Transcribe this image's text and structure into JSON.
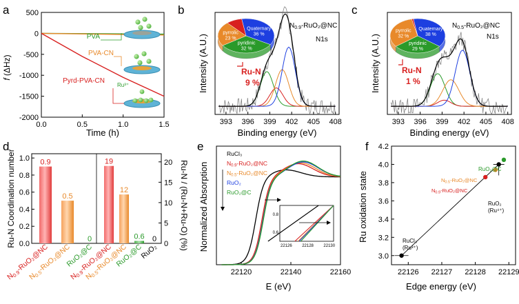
{
  "panels": {
    "a": {
      "letter": "a",
      "ylabel_f": "f",
      "ylabel_rest": " (ΔHz)",
      "xlabel": "Time (h)",
      "xticks": [
        "0.0",
        "0.5",
        "1.0",
        "1.5"
      ],
      "yticks": [
        "500",
        "0",
        "-500",
        "-1000",
        "-1500",
        "-2000"
      ],
      "labels": {
        "pva": "PVA",
        "pvacn": "PVA-CN",
        "pyrd": "Pyrd-PVA-CN",
        "ru": "Ru³⁺"
      }
    },
    "b": {
      "letter": "b",
      "ylabel": "Intensity (A.U.)",
      "xlabel": "Binding energy (eV)",
      "xticks": [
        "393",
        "396",
        "399",
        "402",
        "405",
        "408"
      ],
      "sample_main": "N",
      "sample_sub": "0.9",
      "sample_rest": "-RuO₂@NC",
      "n1s": "N1s",
      "pie": [
        {
          "name": "Quaternary",
          "pct": "36 %",
          "color": "#1d3fe0"
        },
        {
          "name": "pyridinic",
          "pct": "32 %",
          "color": "#2a9a2a"
        },
        {
          "name": "pyrrolic",
          "pct": "23 %",
          "color": "#e8892a"
        },
        {
          "name": "",
          "pct": "",
          "color": "#d8201f"
        }
      ],
      "run_label": "Ru-N",
      "run_pct": "9 %"
    },
    "c": {
      "letter": "c",
      "ylabel": "Intensity (A.U.)",
      "xlabel": "Binding energy (eV)",
      "xticks": [
        "393",
        "396",
        "399",
        "402",
        "405",
        "408"
      ],
      "sample_main": "N",
      "sample_sub": "0.5",
      "sample_rest": "-RuO₂@NC",
      "n1s": "N1s",
      "pie": [
        {
          "name": "Quaternary",
          "pct": "38 %",
          "color": "#1d3fe0"
        },
        {
          "name": "pyridinic",
          "pct": "29 %",
          "color": "#2a9a2a"
        },
        {
          "name": "pyrrolic",
          "pct": "32 %",
          "color": "#e8892a"
        },
        {
          "name": "",
          "pct": "",
          "color": "#d8201f"
        }
      ],
      "run_label": "Ru-N",
      "run_pct": "1 %"
    },
    "d": {
      "letter": "d",
      "ylabel_left": "Ru-N Coordination number",
      "ylabel_right": "Ru-N / (Ru-N+Ru-O) (%)",
      "left_ticks": [
        "0.0",
        "0.2",
        "0.4",
        "0.6",
        "0.8",
        "1.0"
      ],
      "right_ticks": [
        "0",
        "5",
        "10",
        "15",
        "20"
      ],
      "categories": [
        "N0.9-RuO2@NC",
        "N0.5-RuO2@NC",
        "RuO2@C",
        "N0.9-RuO2@NC",
        "N0.5-RuO2@NC",
        "RuO2@C",
        "RuO2"
      ],
      "bars_cn": [
        0.9,
        0.5,
        0
      ],
      "bars_cn_labels": [
        "0.9",
        "0.5",
        "0"
      ],
      "bars_pct": [
        19,
        12,
        0.6,
        0
      ],
      "bars_pct_labels": [
        "19",
        "12",
        "0.6",
        "0"
      ],
      "cat_labels": [
        {
          "main": "N",
          "sub": "0.9",
          "rest": "-RuO₂@NC",
          "color": "#d8201f"
        },
        {
          "main": "N",
          "sub": "0.5",
          "rest": "-RuO₂@NC",
          "color": "#e8892a"
        },
        {
          "main": "RuO₂@C",
          "sub": "",
          "rest": "",
          "color": "#2a9a2a"
        },
        {
          "main": "N",
          "sub": "0.9",
          "rest": "-RuO₂@NC",
          "color": "#d8201f"
        },
        {
          "main": "N",
          "sub": "0.5",
          "rest": "-RuO₂@NC",
          "color": "#e8892a"
        },
        {
          "main": "RuO₂@C",
          "sub": "",
          "rest": "",
          "color": "#2a9a2a"
        },
        {
          "main": "RuO₂",
          "sub": "",
          "rest": "",
          "color": "#000000"
        }
      ]
    },
    "e": {
      "letter": "e",
      "ylabel": "Normalized Absorption",
      "xlabel": "E (eV)",
      "xticks": [
        "22120",
        "22140",
        "22160"
      ],
      "legend": [
        {
          "label": "RuCl₃",
          "color": "#000000"
        },
        {
          "label": "N0.9-RuO2@NC",
          "main": "N",
          "sub": "0.9",
          "rest": "-RuO₂@NC",
          "color": "#d8201f"
        },
        {
          "label": "N0.5-RuO2@NC",
          "main": "N",
          "sub": "0.5",
          "rest": "-RuO₂@NC",
          "color": "#e8892a"
        },
        {
          "label": "RuO₂",
          "color": "#1d3fe0"
        },
        {
          "label": "RuO₂@C",
          "color": "#2a9a2a"
        }
      ],
      "inset_xticks": [
        "22126",
        "22128",
        "22130"
      ],
      "inset_yticks": [
        "0.8",
        "0.6"
      ]
    },
    "f": {
      "letter": "f",
      "ylabel": "Ru oxidation state",
      "xlabel": "Edge energy (eV)",
      "xticks": [
        "22126",
        "22127",
        "22128",
        "22129"
      ],
      "yticks": [
        "3.0",
        "3.2",
        "3.4",
        "3.6",
        "3.8",
        "4.0",
        "4.2"
      ],
      "labels": {
        "rucl3": "RuCl₃",
        "rucl3_sub": "(Ru³⁺)",
        "ruo2": "RuO₂",
        "ruo2_sub": "(Ru⁴⁺)",
        "ruo2c": "RuO₂@C",
        "n05_main": "N",
        "n05_sub": "0.5",
        "n05_rest": "-RuO₂@NC",
        "n09_main": "N",
        "n09_sub": "0.9",
        "n09_rest": "-RuO₂@NC"
      }
    }
  },
  "chart_data": [
    {
      "type": "line",
      "xlabel": "Time (h)",
      "ylabel": "f (ΔHz)",
      "xlim": [
        0,
        1.5
      ],
      "ylim": [
        -2000,
        500
      ],
      "series": [
        {
          "name": "PVA",
          "color": "#2a9a2a",
          "x": [
            0,
            1.5
          ],
          "y": [
            0,
            -20
          ]
        },
        {
          "name": "PVA-CN",
          "color": "#e8892a",
          "x": [
            0,
            1.5
          ],
          "y": [
            0,
            -40
          ]
        },
        {
          "name": "Pyrd-PVA-CN",
          "color": "#d8201f",
          "x": [
            0,
            0.5,
            1.0,
            1.5
          ],
          "y": [
            0,
            -550,
            -1050,
            -1500
          ]
        }
      ]
    },
    {
      "type": "bar",
      "ylabel": "Ru-N Coordination number",
      "categories": [
        "N0.9-RuO2@NC",
        "N0.5-RuO2@NC",
        "RuO2@C"
      ],
      "values": [
        0.9,
        0.5,
        0
      ],
      "ylim": [
        0,
        1.05
      ]
    },
    {
      "type": "bar",
      "ylabel": "Ru-N / (Ru-N+Ru-O) (%)",
      "categories": [
        "N0.9-RuO2@NC",
        "N0.5-RuO2@NC",
        "RuO2@C",
        "RuO2"
      ],
      "values": [
        19,
        12,
        0.6,
        0
      ],
      "ylim": [
        0,
        22
      ]
    },
    {
      "type": "scatter",
      "xlabel": "Edge energy (eV)",
      "ylabel": "Ru oxidation state",
      "xlim": [
        22125.5,
        22129.2
      ],
      "ylim": [
        2.9,
        4.2
      ],
      "series": [
        {
          "name": "RuCl₃",
          "color": "#000000",
          "x": [
            22125.8
          ],
          "y": [
            3.0
          ]
        },
        {
          "name": "N0.9-RuO2@NC",
          "color": "#d8201f",
          "x": [
            22128.3
          ],
          "y": [
            3.86
          ]
        },
        {
          "name": "N0.5-RuO2@NC",
          "color": "#e8892a",
          "x": [
            22128.6
          ],
          "y": [
            3.94
          ]
        },
        {
          "name": "RuO₂",
          "color": "#000000",
          "x": [
            22128.7
          ],
          "y": [
            4.0
          ]
        },
        {
          "name": "RuO₂@C",
          "color": "#2a9a2a",
          "x": [
            22128.85
          ],
          "y": [
            4.05
          ]
        }
      ]
    }
  ]
}
